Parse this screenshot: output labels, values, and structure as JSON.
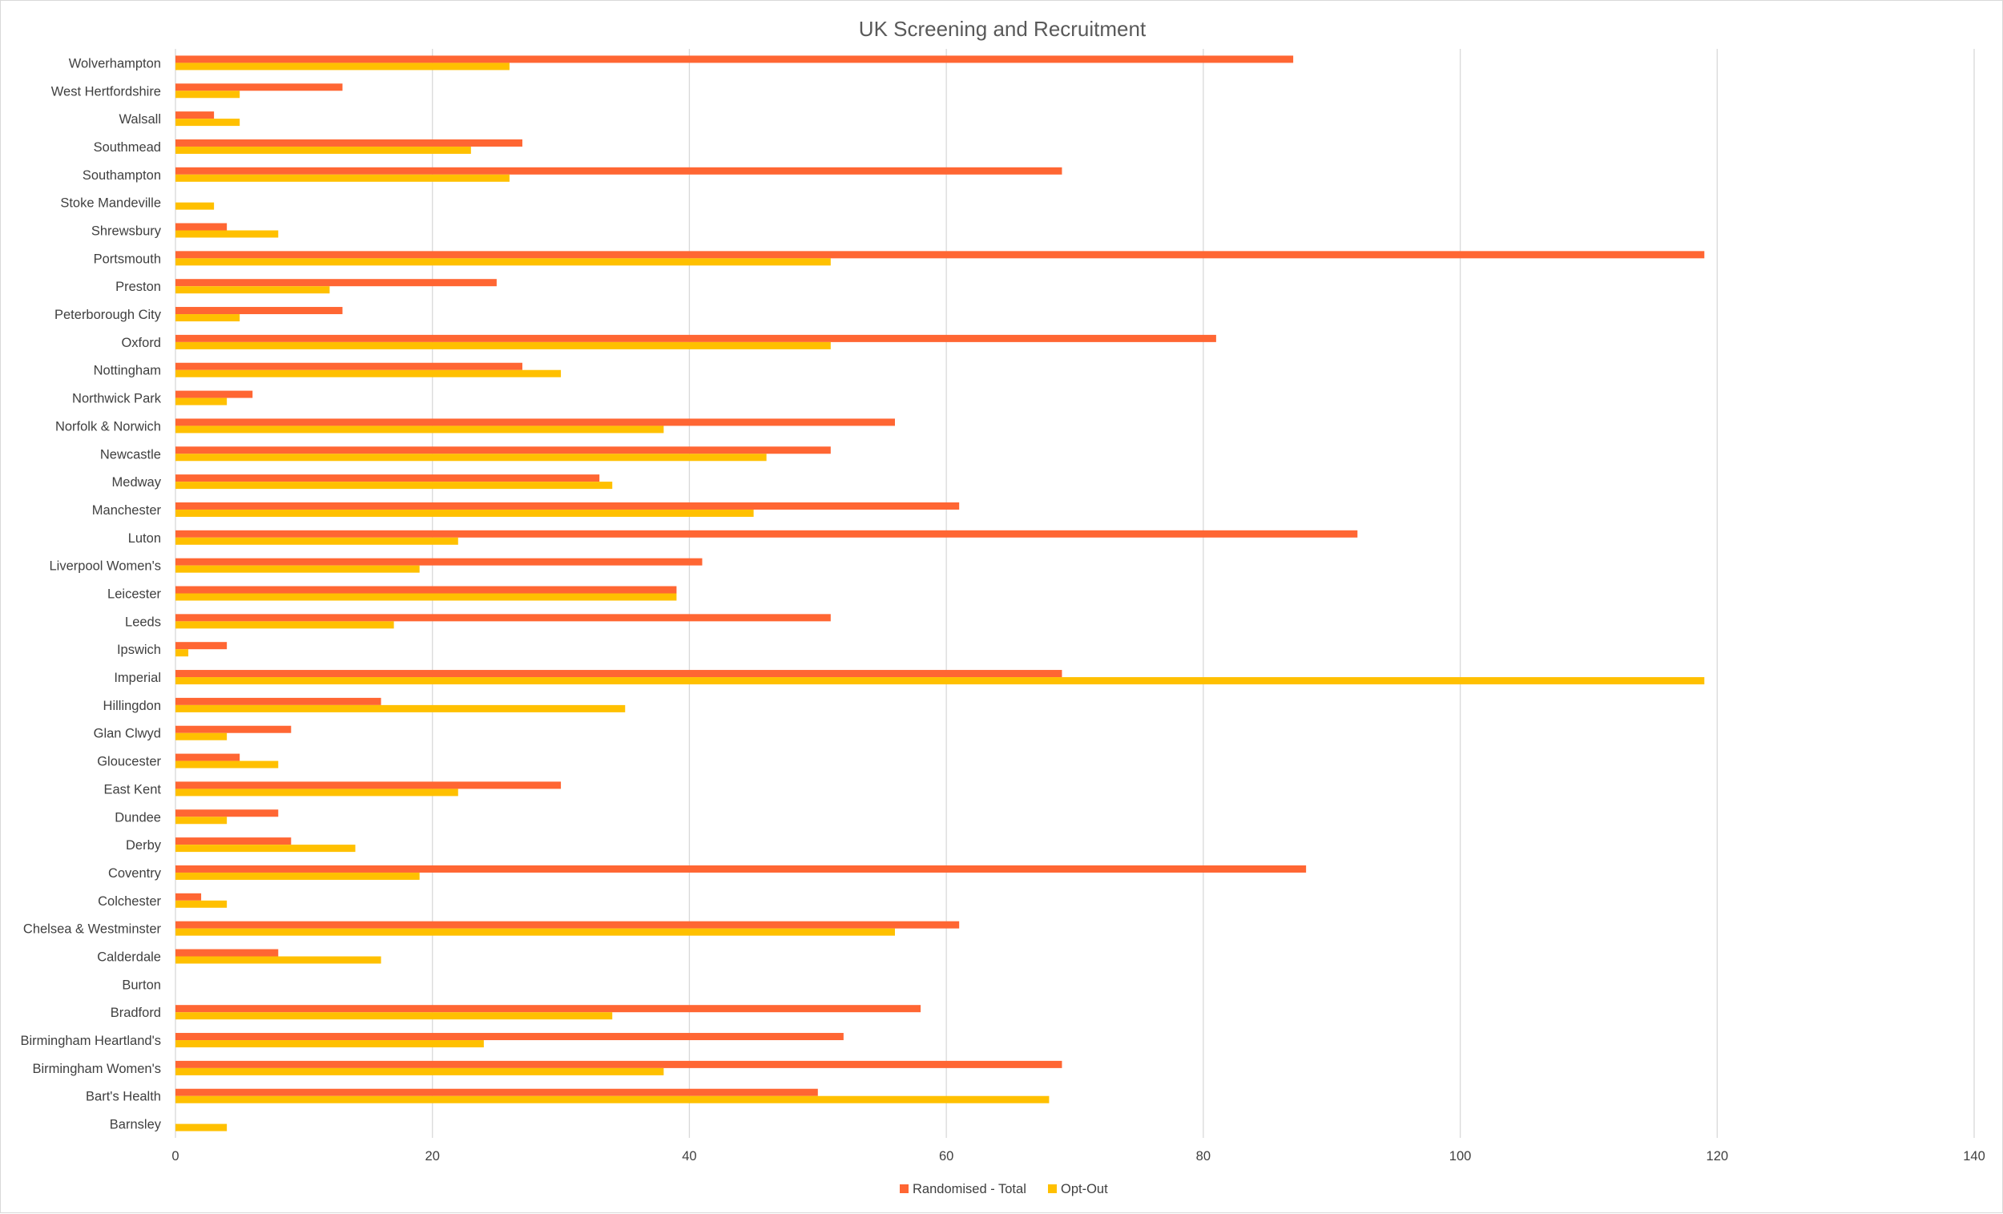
{
  "chart_data": {
    "type": "bar",
    "orientation": "horizontal",
    "title": "UK Screening and Recruitment",
    "xlim": [
      0,
      140
    ],
    "x_ticks": [
      0,
      20,
      40,
      60,
      80,
      100,
      120,
      140
    ],
    "grid": "vertical",
    "legend_position": "bottom",
    "categories": [
      "Wolverhampton",
      "West Hertfordshire",
      "Walsall",
      "Southmead",
      "Southampton",
      "Stoke Mandeville",
      "Shrewsbury",
      "Portsmouth",
      "Preston",
      "Peterborough City",
      "Oxford",
      "Nottingham",
      "Northwick Park",
      "Norfolk & Norwich",
      "Newcastle",
      "Medway",
      "Manchester",
      "Luton",
      "Liverpool Women's",
      "Leicester",
      "Leeds",
      "Ipswich",
      "Imperial",
      "Hillingdon",
      "Glan Clwyd",
      "Gloucester",
      "East Kent",
      "Dundee",
      "Derby",
      "Coventry",
      "Colchester",
      "Chelsea & Westminster",
      "Calderdale",
      "Burton",
      "Bradford",
      "Birmingham Heartland's",
      "Birmingham Women's",
      "Bart's Health",
      "Barnsley"
    ],
    "series": [
      {
        "name": "Randomised - Total",
        "color": "#ff6633",
        "values": [
          87,
          13,
          3,
          27,
          69,
          0,
          4,
          119,
          25,
          13,
          81,
          27,
          6,
          56,
          51,
          33,
          61,
          92,
          41,
          39,
          51,
          4,
          69,
          16,
          9,
          5,
          30,
          8,
          9,
          88,
          2,
          61,
          8,
          0,
          58,
          52,
          69,
          50,
          0
        ]
      },
      {
        "name": "Opt-Out",
        "color": "#ffc000",
        "values": [
          26,
          5,
          5,
          23,
          26,
          3,
          8,
          51,
          12,
          5,
          51,
          30,
          4,
          38,
          46,
          34,
          45,
          22,
          19,
          39,
          17,
          1,
          119,
          35,
          4,
          8,
          22,
          4,
          14,
          19,
          4,
          56,
          16,
          0,
          34,
          24,
          38,
          68,
          4
        ]
      }
    ]
  }
}
